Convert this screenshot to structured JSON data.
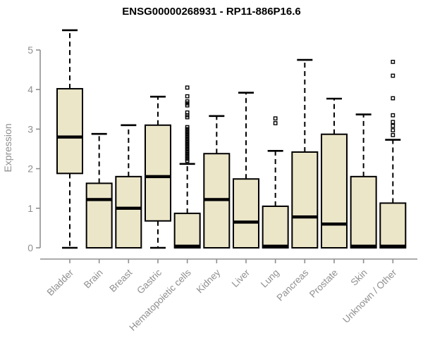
{
  "chart_data": {
    "type": "boxplot",
    "title": "ENSG00000268931 - RP11-886P16.6",
    "ylabel": "Expression",
    "xlabel": "",
    "ylim": [
      0,
      5.6
    ],
    "yticks": [
      0,
      1,
      2,
      3,
      4,
      5
    ],
    "grid": false,
    "legend": "none",
    "categories": [
      "Bladder",
      "Brain",
      "Breast",
      "Gastric",
      "Hematopoietic cells",
      "Kidney",
      "Liver",
      "Lung",
      "Pancreas",
      "Prostate",
      "Skin",
      "Unknown / Other"
    ],
    "boxes": [
      {
        "category": "Bladder",
        "whisker_low": 0.0,
        "q1": 1.88,
        "median": 2.8,
        "q3": 4.02,
        "whisker_high": 5.5,
        "outliers": []
      },
      {
        "category": "Brain",
        "whisker_low": 0.0,
        "q1": 0.0,
        "median": 1.22,
        "q3": 1.63,
        "whisker_high": 2.88,
        "outliers": []
      },
      {
        "category": "Breast",
        "whisker_low": 0.0,
        "q1": 0.0,
        "median": 1.0,
        "q3": 1.8,
        "whisker_high": 3.1,
        "outliers": []
      },
      {
        "category": "Gastric",
        "whisker_low": 0.0,
        "q1": 0.68,
        "median": 1.8,
        "q3": 3.1,
        "whisker_high": 3.82,
        "outliers": []
      },
      {
        "category": "Hematopoietic cells",
        "whisker_low": 0.0,
        "q1": 0.0,
        "median": 0.04,
        "q3": 0.87,
        "whisker_high": 2.12,
        "outliers": [
          4.05,
          3.83,
          3.7,
          3.65,
          3.6,
          3.42,
          3.35,
          3.3,
          3.05,
          3.0,
          2.95,
          2.9,
          2.85,
          2.8,
          2.75,
          2.7,
          2.65,
          2.6,
          2.55,
          2.5,
          2.45,
          2.4,
          2.35,
          2.3,
          2.25,
          2.2
        ]
      },
      {
        "category": "Kidney",
        "whisker_low": 0.0,
        "q1": 0.0,
        "median": 1.22,
        "q3": 2.38,
        "whisker_high": 3.33,
        "outliers": []
      },
      {
        "category": "Liver",
        "whisker_low": 0.0,
        "q1": 0.0,
        "median": 0.65,
        "q3": 1.74,
        "whisker_high": 3.92,
        "outliers": []
      },
      {
        "category": "Lung",
        "whisker_low": 0.0,
        "q1": 0.0,
        "median": 0.04,
        "q3": 1.05,
        "whisker_high": 2.45,
        "outliers": [
          3.27,
          3.15
        ]
      },
      {
        "category": "Pancreas",
        "whisker_low": 0.0,
        "q1": 0.0,
        "median": 0.78,
        "q3": 2.42,
        "whisker_high": 4.75,
        "outliers": []
      },
      {
        "category": "Prostate",
        "whisker_low": 0.0,
        "q1": 0.0,
        "median": 0.6,
        "q3": 2.87,
        "whisker_high": 3.77,
        "outliers": []
      },
      {
        "category": "Skin",
        "whisker_low": 0.0,
        "q1": 0.0,
        "median": 0.04,
        "q3": 1.8,
        "whisker_high": 3.37,
        "outliers": []
      },
      {
        "category": "Unknown / Other",
        "whisker_low": 0.0,
        "q1": 0.0,
        "median": 0.04,
        "q3": 1.13,
        "whisker_high": 2.73,
        "outliers": [
          4.7,
          4.35,
          3.78,
          3.35,
          3.18,
          3.08,
          2.97,
          2.85
        ]
      }
    ],
    "colors": {
      "box_fill": "#ECE6C9",
      "box_border": "#000000",
      "median": "#000000",
      "whisker": "#000000",
      "outlier": "#000000",
      "axis": "#8f8f8f",
      "tick_label": "#8f8f8f",
      "title": "#000000"
    }
  }
}
